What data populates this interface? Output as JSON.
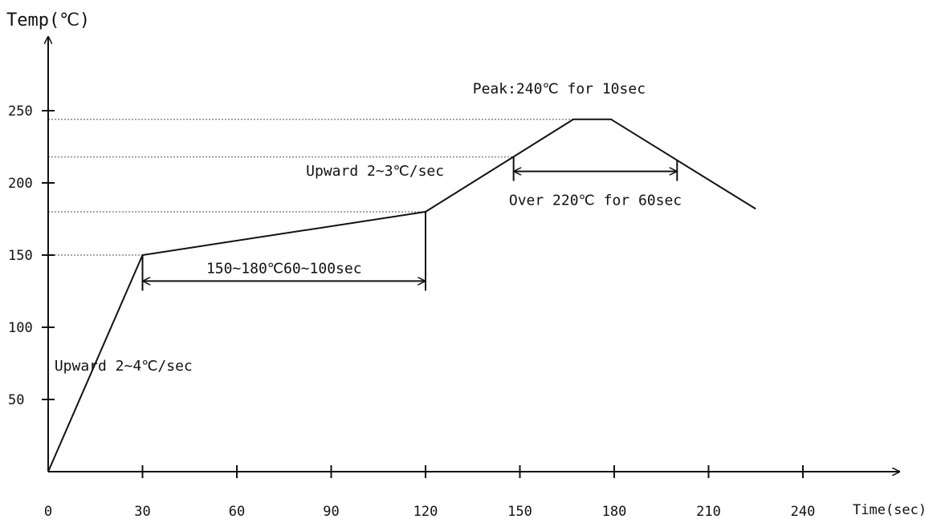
{
  "chart_data": {
    "type": "line",
    "title": "",
    "xlabel": "Time(sec)",
    "ylabel": "Temp(℃)",
    "xlim": [
      0,
      270
    ],
    "ylim": [
      0,
      290
    ],
    "x_ticks": [
      0,
      30,
      60,
      90,
      120,
      150,
      180,
      210,
      240
    ],
    "x_tick_labels": [
      "0",
      "30",
      "60",
      "90",
      "120",
      "150",
      "180",
      "210",
      "240"
    ],
    "y_ticks": [
      50,
      100,
      150,
      200,
      250
    ],
    "y_tick_labels": [
      "50",
      "100",
      "150",
      "200",
      "250"
    ],
    "grid": false,
    "legend": "none",
    "series": [
      {
        "x": [
          0,
          30,
          120,
          167,
          179,
          225
        ],
        "y": [
          0,
          150,
          180,
          244,
          244,
          182
        ]
      }
    ],
    "reference_lines": [
      {
        "y": 244,
        "x_end": 167
      },
      {
        "y": 218,
        "x_end": 148
      },
      {
        "y": 180,
        "x_end": 120
      },
      {
        "y": 150,
        "x_end": 30
      }
    ],
    "spans": [
      {
        "label": "150~180℃60~100sec",
        "x_start": 30,
        "x_end": 120,
        "y": 132
      },
      {
        "label": "Over 220℃ for 60sec",
        "x_start": 148,
        "x_end": 200,
        "y": 208
      }
    ],
    "annotations": [
      {
        "text": "Peak:240℃  for 10sec",
        "x": 135,
        "y": 262
      },
      {
        "text": "Upward 2~3℃/sec",
        "x": 82,
        "y": 205
      },
      {
        "text": "Upward 2~4℃/sec",
        "x": 2,
        "y": 70
      }
    ],
    "colors": {
      "line": "#111111",
      "reference": "#888888",
      "text": "#111111"
    }
  }
}
